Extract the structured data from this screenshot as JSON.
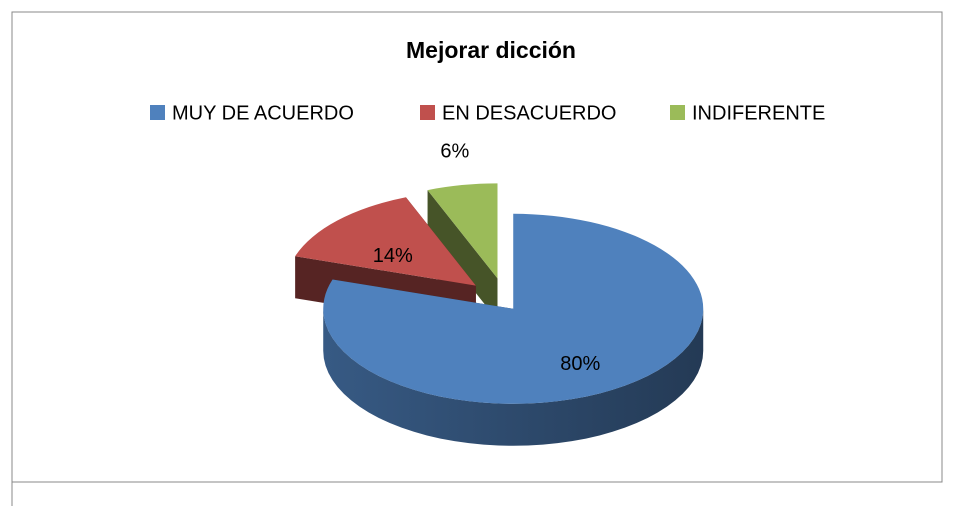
{
  "chart_data": {
    "type": "pie",
    "title": "Mejorar dicción",
    "categories": [
      "MUY DE ACUERDO",
      "EN DESACUERDO",
      "INDIFERENTE"
    ],
    "values": [
      80,
      14,
      6
    ],
    "value_labels": [
      "80%",
      "14%",
      "6%"
    ],
    "colors": [
      "#4f81bd",
      "#c0504d",
      "#9bbb59"
    ],
    "legend": "top"
  }
}
